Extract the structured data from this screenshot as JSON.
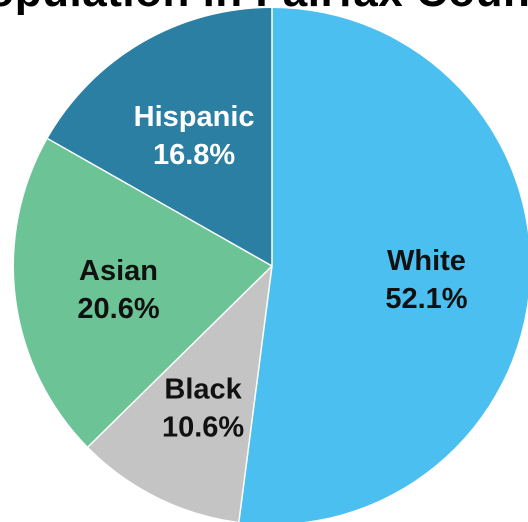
{
  "chart_data": {
    "type": "pie",
    "title": "Population in Fairfax County",
    "slices": [
      {
        "name": "White",
        "label": "White",
        "value": 52.1,
        "value_label": "52.1%",
        "color": "#4BBFEF",
        "label_color": "#111111"
      },
      {
        "name": "Black",
        "label": "Black",
        "value": 10.6,
        "value_label": "10.6%",
        "color": "#C4C4C4",
        "label_color": "#111111"
      },
      {
        "name": "Asian",
        "label": "Asian",
        "value": 20.6,
        "value_label": "20.6%",
        "color": "#6CC496",
        "label_color": "#111111"
      },
      {
        "name": "Hispanic",
        "label": "Hispanic",
        "value": 16.8,
        "value_label": "16.8%",
        "color": "#2A7FA3",
        "label_color": "#FFFFFF"
      }
    ],
    "start": "top",
    "direction": "clockwise"
  }
}
